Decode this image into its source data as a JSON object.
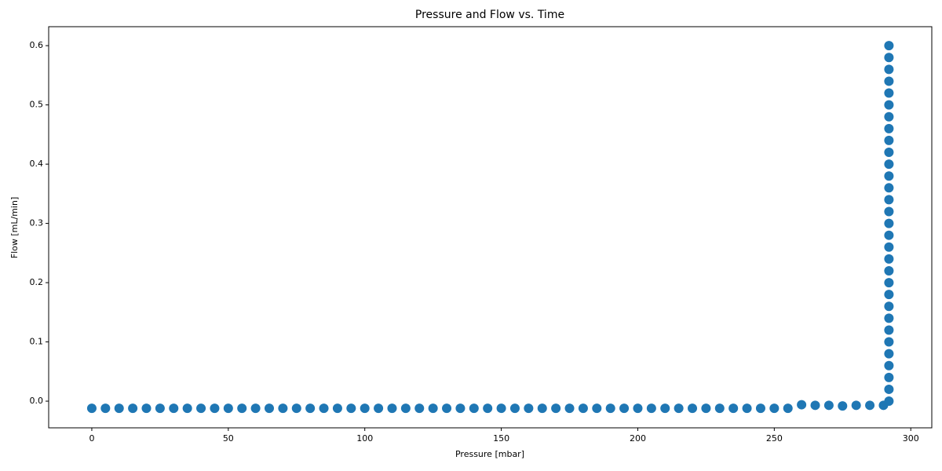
{
  "chart_data": {
    "type": "scatter",
    "title": "Pressure and Flow vs. Time",
    "x_label": "Pressure [mbar]",
    "y_label": "Flow [mL/min]",
    "color": "#1f77b4",
    "grid": false,
    "xlim": [
      -15.8,
      307.7
    ],
    "ylim": [
      -0.045,
      0.632
    ],
    "xticks": [
      0,
      50,
      100,
      150,
      200,
      250,
      300
    ],
    "yticks": [
      {
        "value": 0,
        "label": "0.0"
      },
      0.1,
      0.2,
      0.3,
      0.4,
      0.5,
      0.6
    ],
    "x": [
      0,
      5,
      10,
      15,
      20,
      25,
      30,
      35,
      40,
      45,
      50,
      55,
      60,
      65,
      70,
      75,
      80,
      85,
      90,
      95,
      100,
      105,
      110,
      115,
      120,
      125,
      130,
      135,
      140,
      145,
      150,
      155,
      160,
      165,
      170,
      175,
      180,
      185,
      190,
      195,
      200,
      205,
      210,
      215,
      220,
      225,
      230,
      235,
      240,
      245,
      250,
      255,
      260,
      265,
      270,
      275,
      280,
      285,
      290,
      292,
      292,
      292,
      292,
      292,
      292,
      292,
      292,
      292,
      292,
      292,
      292,
      292,
      292,
      292,
      292,
      292,
      292,
      292,
      292,
      292,
      292,
      292,
      292,
      292,
      292,
      292,
      292,
      292,
      292,
      292
    ],
    "values": [
      -0.012,
      -0.012,
      -0.012,
      -0.012,
      -0.012,
      -0.012,
      -0.012,
      -0.012,
      -0.012,
      -0.012,
      -0.012,
      -0.012,
      -0.012,
      -0.012,
      -0.012,
      -0.012,
      -0.012,
      -0.012,
      -0.012,
      -0.012,
      -0.012,
      -0.012,
      -0.012,
      -0.012,
      -0.012,
      -0.012,
      -0.012,
      -0.012,
      -0.012,
      -0.012,
      -0.012,
      -0.012,
      -0.012,
      -0.012,
      -0.012,
      -0.012,
      -0.012,
      -0.012,
      -0.012,
      -0.012,
      -0.012,
      -0.012,
      -0.012,
      -0.012,
      -0.012,
      -0.012,
      -0.012,
      -0.012,
      -0.012,
      -0.012,
      -0.012,
      -0.012,
      -0.006,
      -0.007,
      -0.007,
      -0.008,
      -0.007,
      -0.007,
      -0.007,
      0,
      0.02,
      0.04,
      0.06,
      0.08,
      0.1,
      0.12,
      0.14,
      0.16,
      0.18,
      0.2,
      0.22,
      0.24,
      0.26,
      0.28,
      0.3,
      0.32,
      0.34,
      0.36,
      0.38,
      0.4,
      0.42,
      0.44,
      0.46,
      0.48,
      0.5,
      0.52,
      0.54,
      0.56,
      0.58,
      0.6
    ]
  }
}
